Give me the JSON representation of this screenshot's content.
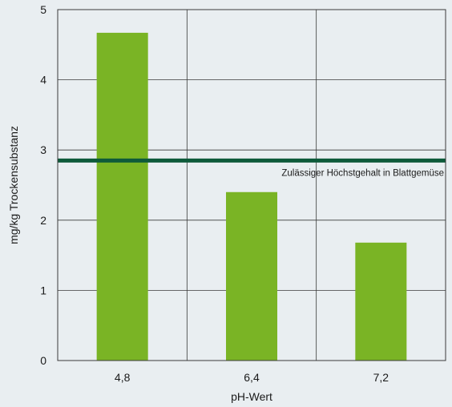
{
  "chart_data": {
    "type": "bar",
    "categories": [
      "4,8",
      "6,4",
      "7,2"
    ],
    "values": [
      4.67,
      2.4,
      1.68
    ],
    "xlabel": "pH-Wert",
    "ylabel": "mg/kg Trockensubstanz",
    "ylim": [
      0,
      5
    ],
    "yticks": [
      "0",
      "1",
      "2",
      "3",
      "4",
      "5"
    ],
    "grid": true,
    "reference_line": {
      "value": 2.85,
      "label": "Zulässiger Höchstgehalt in Blattgemüse"
    },
    "colors": {
      "bar": "#7ab425",
      "reference_line": "#0e5a3a",
      "plot_background": "#e9eef1",
      "grid": "#3a3a3a"
    }
  }
}
